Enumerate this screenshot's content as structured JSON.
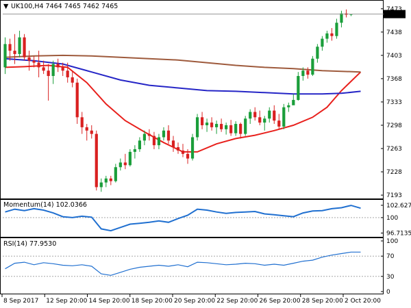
{
  "chart_data": [
    {
      "type": "candlestick",
      "symbol": "UK100,H4",
      "ohlc_header": "7464 7465 7462 7465",
      "title": "UK100,H4  7464 7465 7462 7465",
      "last_price": "7465",
      "ylim": [
        7190,
        7480
      ],
      "y_ticks": [
        "7473",
        "7438",
        "7403",
        "7368",
        "7333",
        "7298",
        "7263",
        "7228",
        "7193"
      ],
      "candles": [
        [
          7385,
          7430,
          7375,
          7420
        ],
        [
          7420,
          7428,
          7395,
          7410
        ],
        [
          7410,
          7435,
          7390,
          7405
        ],
        [
          7405,
          7440,
          7400,
          7430
        ],
        [
          7430,
          7435,
          7395,
          7400
        ],
        [
          7400,
          7410,
          7380,
          7395
        ],
        [
          7395,
          7402,
          7385,
          7392
        ],
        [
          7392,
          7410,
          7370,
          7385
        ],
        [
          7385,
          7395,
          7375,
          7380
        ],
        [
          7380,
          7390,
          7335,
          7372
        ],
        [
          7372,
          7395,
          7360,
          7390
        ],
        [
          7390,
          7398,
          7378,
          7385
        ],
        [
          7385,
          7392,
          7372,
          7380
        ],
        [
          7380,
          7392,
          7362,
          7370
        ],
        [
          7370,
          7380,
          7355,
          7362
        ],
        [
          7362,
          7368,
          7300,
          7310
        ],
        [
          7310,
          7318,
          7285,
          7295
        ],
        [
          7295,
          7300,
          7275,
          7290
        ],
        [
          7290,
          7298,
          7278,
          7285
        ],
        [
          7285,
          7290,
          7200,
          7205
        ],
        [
          7205,
          7218,
          7198,
          7212
        ],
        [
          7212,
          7222,
          7205,
          7218
        ],
        [
          7218,
          7222,
          7208,
          7214
        ],
        [
          7214,
          7240,
          7212,
          7235
        ],
        [
          7235,
          7248,
          7230,
          7242
        ],
        [
          7242,
          7255,
          7232,
          7238
        ],
        [
          7238,
          7262,
          7236,
          7258
        ],
        [
          7258,
          7268,
          7248,
          7262
        ],
        [
          7262,
          7280,
          7258,
          7275
        ],
        [
          7275,
          7290,
          7268,
          7285
        ],
        [
          7285,
          7292,
          7275,
          7282
        ],
        [
          7282,
          7288,
          7262,
          7268
        ],
        [
          7268,
          7285,
          7262,
          7280
        ],
        [
          7280,
          7295,
          7275,
          7290
        ],
        [
          7290,
          7298,
          7270,
          7275
        ],
        [
          7275,
          7282,
          7258,
          7265
        ],
        [
          7265,
          7272,
          7255,
          7260
        ],
        [
          7260,
          7270,
          7250,
          7255
        ],
        [
          7255,
          7262,
          7240,
          7248
        ],
        [
          7248,
          7285,
          7245,
          7280
        ],
        [
          7280,
          7315,
          7275,
          7310
        ],
        [
          7310,
          7318,
          7292,
          7298
        ],
        [
          7298,
          7308,
          7288,
          7302
        ],
        [
          7302,
          7310,
          7290,
          7295
        ],
        [
          7295,
          7305,
          7285,
          7300
        ],
        [
          7300,
          7308,
          7288,
          7292
        ],
        [
          7292,
          7302,
          7284,
          7298
        ],
        [
          7298,
          7306,
          7282,
          7286
        ],
        [
          7286,
          7304,
          7282,
          7300
        ],
        [
          7300,
          7302,
          7278,
          7285
        ],
        [
          7285,
          7312,
          7282,
          7308
        ],
        [
          7308,
          7322,
          7300,
          7318
        ],
        [
          7318,
          7325,
          7305,
          7310
        ],
        [
          7310,
          7320,
          7298,
          7302
        ],
        [
          7302,
          7312,
          7290,
          7308
        ],
        [
          7308,
          7325,
          7302,
          7320
        ],
        [
          7320,
          7328,
          7300,
          7305
        ],
        [
          7305,
          7315,
          7292,
          7296
        ],
        [
          7296,
          7330,
          7292,
          7325
        ],
        [
          7325,
          7332,
          7318,
          7328
        ],
        [
          7328,
          7345,
          7330,
          7336
        ],
        [
          7336,
          7378,
          7335,
          7372
        ],
        [
          7372,
          7385,
          7365,
          7380
        ],
        [
          7380,
          7385,
          7368,
          7374
        ],
        [
          7374,
          7402,
          7372,
          7398
        ],
        [
          7398,
          7420,
          7392,
          7416
        ],
        [
          7416,
          7432,
          7410,
          7428
        ],
        [
          7428,
          7440,
          7422,
          7436
        ],
        [
          7436,
          7444,
          7425,
          7432
        ],
        [
          7432,
          7458,
          7428,
          7452
        ],
        [
          7452,
          7470,
          7445,
          7466
        ],
        [
          7466,
          7472,
          7460,
          7464
        ],
        [
          7464,
          7465,
          7462,
          7465
        ]
      ],
      "series": [
        {
          "name": "MA-fast",
          "color": "#e8201c",
          "values": [
            [
              0,
              7385
            ],
            [
              4,
              7386
            ],
            [
              9,
              7388
            ],
            [
              13,
              7385
            ],
            [
              17,
              7362
            ],
            [
              21,
              7330
            ],
            [
              25,
              7305
            ],
            [
              29,
              7288
            ],
            [
              33,
              7272
            ],
            [
              37,
              7258
            ],
            [
              40,
              7258
            ],
            [
              44,
              7270
            ],
            [
              48,
              7278
            ],
            [
              52,
              7283
            ],
            [
              56,
              7290
            ],
            [
              60,
              7298
            ],
            [
              64,
              7310
            ],
            [
              67,
              7325
            ],
            [
              70,
              7350
            ],
            [
              74,
              7378
            ]
          ]
        },
        {
          "name": "MA-mid",
          "color": "#2525c6",
          "values": [
            [
              0,
              7398
            ],
            [
              6,
              7395
            ],
            [
              12,
              7390
            ],
            [
              18,
              7378
            ],
            [
              24,
              7366
            ],
            [
              30,
              7358
            ],
            [
              36,
              7354
            ],
            [
              42,
              7350
            ],
            [
              48,
              7349
            ],
            [
              54,
              7347
            ],
            [
              60,
              7345
            ],
            [
              66,
              7345
            ],
            [
              70,
              7346
            ],
            [
              74,
              7349
            ]
          ]
        },
        {
          "name": "MA-slow",
          "color": "#9e5a3c",
          "values": [
            [
              0,
              7400
            ],
            [
              6,
              7402
            ],
            [
              12,
              7403
            ],
            [
              18,
              7402
            ],
            [
              24,
              7400
            ],
            [
              30,
              7398
            ],
            [
              36,
              7396
            ],
            [
              42,
              7392
            ],
            [
              48,
              7388
            ],
            [
              54,
              7385
            ],
            [
              60,
              7383
            ],
            [
              66,
              7380
            ],
            [
              70,
              7379
            ],
            [
              74,
              7378
            ]
          ]
        }
      ]
    },
    {
      "type": "line",
      "title": "Momentum(14) 102.0366",
      "ylabel_ticks": [
        "102.6272",
        "100",
        "96.7135"
      ],
      "ylim": [
        96.2,
        103.2
      ],
      "reference_level": 100,
      "series": [
        {
          "color": "#1f6fd0",
          "values": [
            [
              0,
              101.2
            ],
            [
              2,
              101.8
            ],
            [
              4,
              101.5
            ],
            [
              6,
              101.9
            ],
            [
              8,
              101.6
            ],
            [
              10,
              101.0
            ],
            [
              12,
              100.2
            ],
            [
              14,
              100.0
            ],
            [
              16,
              100.3
            ],
            [
              18,
              100.1
            ],
            [
              20,
              97.6
            ],
            [
              22,
              97.2
            ],
            [
              24,
              97.9
            ],
            [
              26,
              98.6
            ],
            [
              28,
              98.8
            ],
            [
              30,
              99.0
            ],
            [
              32,
              99.3
            ],
            [
              34,
              99.0
            ],
            [
              36,
              99.8
            ],
            [
              38,
              100.5
            ],
            [
              40,
              101.8
            ],
            [
              42,
              101.6
            ],
            [
              44,
              101.2
            ],
            [
              46,
              100.9
            ],
            [
              48,
              101.1
            ],
            [
              50,
              101.2
            ],
            [
              52,
              101.3
            ],
            [
              54,
              100.8
            ],
            [
              56,
              100.6
            ],
            [
              58,
              100.4
            ],
            [
              60,
              100.2
            ],
            [
              62,
              101.0
            ],
            [
              64,
              101.4
            ],
            [
              66,
              101.5
            ],
            [
              68,
              101.9
            ],
            [
              70,
              102.1
            ],
            [
              72,
              102.6
            ],
            [
              74,
              102.0
            ]
          ]
        }
      ]
    },
    {
      "type": "line",
      "title": "RSI(14) 77.9530",
      "ylabel_ticks": [
        "100",
        "70",
        "30",
        "0"
      ],
      "ylim": [
        0,
        100
      ],
      "levels": [
        70,
        30
      ],
      "series": [
        {
          "color": "#1f6fd0",
          "values": [
            [
              0,
              45
            ],
            [
              2,
              56
            ],
            [
              4,
              58
            ],
            [
              6,
              53
            ],
            [
              8,
              57
            ],
            [
              10,
              55
            ],
            [
              12,
              52
            ],
            [
              14,
              51
            ],
            [
              16,
              53
            ],
            [
              18,
              50
            ],
            [
              20,
              35
            ],
            [
              22,
              32
            ],
            [
              24,
              38
            ],
            [
              26,
              44
            ],
            [
              28,
              48
            ],
            [
              30,
              50
            ],
            [
              32,
              52
            ],
            [
              34,
              50
            ],
            [
              36,
              53
            ],
            [
              38,
              49
            ],
            [
              40,
              58
            ],
            [
              42,
              57
            ],
            [
              44,
              55
            ],
            [
              46,
              53
            ],
            [
              48,
              54
            ],
            [
              50,
              56
            ],
            [
              52,
              55
            ],
            [
              54,
              52
            ],
            [
              56,
              54
            ],
            [
              58,
              52
            ],
            [
              60,
              56
            ],
            [
              62,
              60
            ],
            [
              64,
              62
            ],
            [
              66,
              68
            ],
            [
              68,
              72
            ],
            [
              70,
              75
            ],
            [
              72,
              78
            ],
            [
              74,
              77.95
            ]
          ]
        }
      ]
    }
  ],
  "x_axis": {
    "tick_labels": [
      "8 Sep 2017",
      "12 Sep 20:00",
      "14 Sep 20:00",
      "18 Sep 20:00",
      "20 Sep 20:00",
      "22 Sep 20:00",
      "26 Sep 20:00",
      "28 Sep 20:00",
      "2 Oct 20:00"
    ]
  },
  "colors": {
    "bull": "#1a9e3a",
    "bear": "#d92020",
    "momentum": "#1f6fd0",
    "rsi": "#1f6fd0"
  }
}
